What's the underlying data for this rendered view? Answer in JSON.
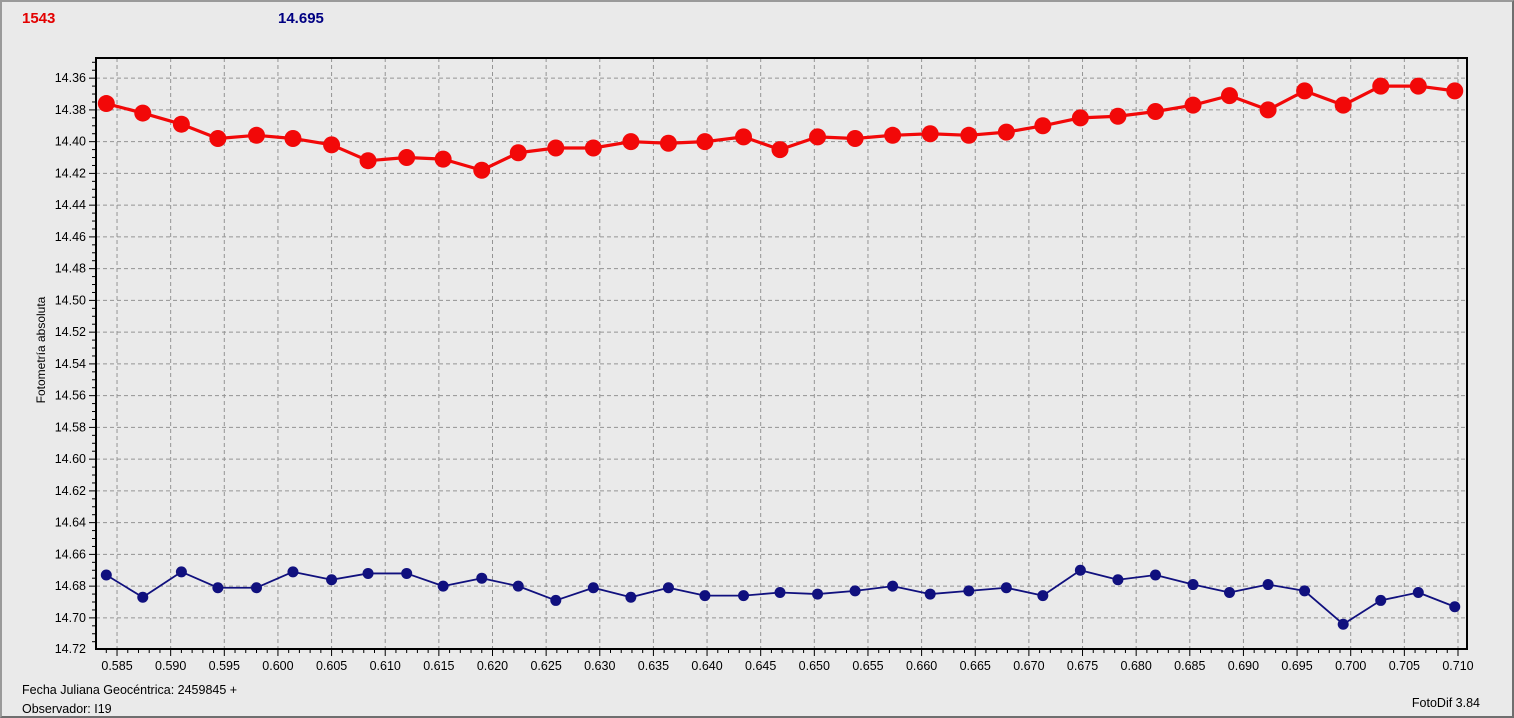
{
  "header": {
    "object_number": "1543",
    "magnitude_label": "14.695"
  },
  "footer": {
    "line1": "Fecha Juliana Geocéntrica: 2459845 +",
    "line2": "Observador: I19",
    "app_version": "FotoDif 3.84"
  },
  "colors": {
    "background": "#eaeaea",
    "grid": "#949494",
    "frame": "#000000",
    "tick_text": "#000000",
    "red_series": "#f20808",
    "navy_series": "#10107e",
    "header_red": "#e30000",
    "header_navy": "#000082"
  },
  "chart_data": {
    "type": "line",
    "title": "",
    "ylabel": "Fotometría absoluta",
    "xlabel": "Fecha Juliana Geocéntrica: 2459845 +",
    "grid": true,
    "legend": "none",
    "x_axis": {
      "min": 0.58304,
      "max": 0.71084,
      "tick_start": 0.585,
      "tick_end": 0.71,
      "tick_step": 0.005,
      "minor_start": 0.584,
      "minor_step": 0.001,
      "decimals": 3
    },
    "y_axis": {
      "inverted": true,
      "min": 14.3473,
      "max": 14.7196,
      "tick_start": 14.36,
      "tick_end": 14.72,
      "tick_step": 0.02,
      "minor_start": 14.35,
      "minor_step": 0.005,
      "decimals": 2
    },
    "x": [
      0.584,
      0.5874,
      0.591,
      0.5944,
      0.598,
      0.6014,
      0.605,
      0.6084,
      0.612,
      0.6154,
      0.619,
      0.6224,
      0.6259,
      0.6294,
      0.6329,
      0.6364,
      0.6398,
      0.6434,
      0.6468,
      0.6503,
      0.6538,
      0.6573,
      0.6608,
      0.6644,
      0.6679,
      0.6713,
      0.6748,
      0.6783,
      0.6818,
      0.6853,
      0.6887,
      0.6923,
      0.6957,
      0.6993,
      0.7028,
      0.7063,
      0.7097
    ],
    "series": [
      {
        "name": "absolute-photometry",
        "color": "#f20808",
        "marker_radius": 8.5,
        "line_width": 3.2,
        "values": [
          14.376,
          14.382,
          14.389,
          14.398,
          14.396,
          14.398,
          14.402,
          14.412,
          14.41,
          14.411,
          14.418,
          14.407,
          14.404,
          14.404,
          14.4,
          14.401,
          14.4,
          14.397,
          14.405,
          14.397,
          14.398,
          14.396,
          14.395,
          14.396,
          14.394,
          14.39,
          14.385,
          14.384,
          14.381,
          14.377,
          14.371,
          14.38,
          14.368,
          14.377,
          14.365,
          14.365,
          14.368
        ]
      },
      {
        "name": "comparison-photometry",
        "color": "#10107e",
        "marker_radius": 5.5,
        "line_width": 1.8,
        "values": [
          14.673,
          14.687,
          14.671,
          14.681,
          14.681,
          14.671,
          14.676,
          14.672,
          14.672,
          14.68,
          14.675,
          14.68,
          14.689,
          14.681,
          14.687,
          14.681,
          14.686,
          14.686,
          14.684,
          14.685,
          14.683,
          14.68,
          14.685,
          14.683,
          14.681,
          14.686,
          14.67,
          14.676,
          14.673,
          14.679,
          14.684,
          14.679,
          14.683,
          14.704,
          14.689,
          14.684,
          14.693
        ]
      }
    ]
  }
}
